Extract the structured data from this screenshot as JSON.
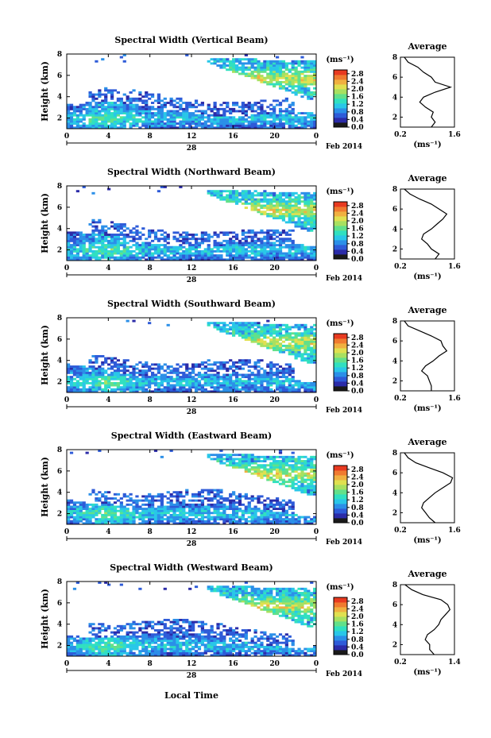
{
  "figure": {
    "bottom_label": "Local Time",
    "date_label": "Feb 2014",
    "day_label": "28",
    "colormap": [
      "#1a1a1a",
      "#2b2ba8",
      "#2e5bd8",
      "#2b8fe8",
      "#29c7e8",
      "#30e0c0",
      "#62e08a",
      "#a8e060",
      "#e0e050",
      "#f0b040",
      "#f07a30",
      "#e83a20"
    ]
  },
  "chart_data": [
    {
      "type": "heatmap",
      "title": "Spectral Width (Vertical Beam)",
      "ylabel": "Height (km)",
      "x_ticks": [
        "0",
        "4",
        "8",
        "12",
        "16",
        "20",
        "0"
      ],
      "y_ticks": [
        "2",
        "4",
        "6",
        "8"
      ],
      "xlim": [
        0,
        24
      ],
      "ylim": [
        1,
        8
      ],
      "colorbar": {
        "unit": "(ms⁻¹)",
        "ticks": [
          "0.0",
          "0.4",
          "0.8",
          "1.2",
          "1.6",
          "2.0",
          "2.4",
          "2.8"
        ],
        "range": [
          0.0,
          3.0
        ]
      },
      "average": {
        "title": "Average",
        "xlabel": "(ms⁻¹)",
        "x_ticks": [
          "0.2",
          "1.6"
        ],
        "xlim": [
          0.2,
          1.6
        ],
        "y_ticks": [
          "2",
          "4",
          "6",
          "8"
        ],
        "height": [
          1.0,
          1.5,
          2.0,
          2.5,
          3.0,
          3.5,
          4.0,
          4.5,
          5.0,
          5.5,
          6.0,
          6.5,
          7.0,
          7.5,
          8.0
        ],
        "value": [
          1.0,
          1.1,
          1.0,
          1.05,
          0.85,
          0.7,
          0.8,
          1.1,
          1.5,
          1.1,
          1.0,
          0.8,
          0.65,
          0.4,
          0.3
        ]
      }
    },
    {
      "type": "heatmap",
      "title": "Spectral Width (Northward Beam)",
      "ylabel": "Height (km)",
      "x_ticks": [
        "0",
        "4",
        "8",
        "12",
        "16",
        "20",
        "0"
      ],
      "y_ticks": [
        "2",
        "4",
        "6",
        "8"
      ],
      "xlim": [
        0,
        24
      ],
      "ylim": [
        1,
        8
      ],
      "colorbar": {
        "unit": "(ms⁻¹)",
        "ticks": [
          "0.0",
          "0.4",
          "0.8",
          "1.2",
          "1.6",
          "2.0",
          "2.4",
          "2.8"
        ],
        "range": [
          0.0,
          3.0
        ]
      },
      "average": {
        "title": "Average",
        "xlabel": "(ms⁻¹)",
        "x_ticks": [
          "0.2",
          "1.6"
        ],
        "xlim": [
          0.2,
          1.6
        ],
        "y_ticks": [
          "2",
          "4",
          "6",
          "8"
        ],
        "height": [
          1.0,
          1.5,
          2.0,
          2.5,
          3.0,
          3.5,
          4.0,
          4.5,
          5.0,
          5.5,
          6.0,
          6.5,
          7.0,
          7.5,
          8.0
        ],
        "value": [
          1.1,
          1.2,
          1.0,
          0.9,
          0.75,
          0.8,
          1.0,
          1.15,
          1.3,
          1.4,
          1.2,
          1.0,
          0.7,
          0.45,
          0.3
        ]
      }
    },
    {
      "type": "heatmap",
      "title": "Spectral Width (Southward Beam)",
      "ylabel": "Height (km)",
      "x_ticks": [
        "0",
        "4",
        "8",
        "12",
        "16",
        "20",
        "0"
      ],
      "y_ticks": [
        "2",
        "4",
        "6",
        "8"
      ],
      "xlim": [
        0,
        24
      ],
      "ylim": [
        1,
        8
      ],
      "colorbar": {
        "unit": "(ms⁻¹)",
        "ticks": [
          "0.0",
          "0.4",
          "0.8",
          "1.2",
          "1.6",
          "2.0",
          "2.4",
          "2.8"
        ],
        "range": [
          0.0,
          3.0
        ]
      },
      "average": {
        "title": "Average",
        "xlabel": "(ms⁻¹)",
        "x_ticks": [
          "0.2",
          "1.6"
        ],
        "xlim": [
          0.2,
          1.6
        ],
        "y_ticks": [
          "2",
          "4",
          "6",
          "8"
        ],
        "height": [
          1.0,
          1.5,
          2.0,
          2.5,
          3.0,
          3.5,
          4.0,
          4.5,
          5.0,
          5.5,
          6.0,
          6.5,
          7.0,
          7.5,
          8.0
        ],
        "value": [
          1.0,
          1.0,
          0.95,
          0.9,
          0.75,
          0.85,
          1.05,
          1.2,
          1.4,
          1.3,
          1.25,
          1.0,
          0.7,
          0.4,
          0.3
        ]
      }
    },
    {
      "type": "heatmap",
      "title": "Spectral Width (Eastward Beam)",
      "ylabel": "Height (km)",
      "x_ticks": [
        "0",
        "4",
        "8",
        "12",
        "16",
        "20",
        "0"
      ],
      "y_ticks": [
        "2",
        "4",
        "6",
        "8"
      ],
      "xlim": [
        0,
        24
      ],
      "ylim": [
        1,
        8
      ],
      "colorbar": {
        "unit": "(ms⁻¹)",
        "ticks": [
          "0.0",
          "0.4",
          "0.8",
          "1.2",
          "1.6",
          "2.0",
          "2.4",
          "2.8"
        ],
        "range": [
          0.0,
          3.0
        ]
      },
      "average": {
        "title": "Average",
        "xlabel": "(ms⁻¹)",
        "x_ticks": [
          "0.2",
          "1.6"
        ],
        "xlim": [
          0.2,
          1.6
        ],
        "y_ticks": [
          "2",
          "4",
          "6",
          "8"
        ],
        "height": [
          1.0,
          1.5,
          2.0,
          2.5,
          3.0,
          3.5,
          4.0,
          4.5,
          5.0,
          5.5,
          6.0,
          6.5,
          7.0,
          7.5,
          8.0
        ],
        "value": [
          1.1,
          0.95,
          0.85,
          0.75,
          0.8,
          0.95,
          1.1,
          1.3,
          1.5,
          1.55,
          1.3,
          0.95,
          0.6,
          0.4,
          0.3
        ]
      }
    },
    {
      "type": "heatmap",
      "title": "Spectral Width (Westward Beam)",
      "ylabel": "Height (km)",
      "x_ticks": [
        "0",
        "4",
        "8",
        "12",
        "16",
        "20",
        "0"
      ],
      "y_ticks": [
        "2",
        "4",
        "6",
        "8"
      ],
      "xlim": [
        0,
        24
      ],
      "ylim": [
        1,
        8
      ],
      "colorbar": {
        "unit": "(ms⁻¹)",
        "ticks": [
          "0.0",
          "0.4",
          "0.8",
          "1.2",
          "1.6",
          "2.0",
          "2.4",
          "2.8"
        ],
        "range": [
          0.0,
          3.0
        ]
      },
      "average": {
        "title": "Average",
        "xlabel": "(ms⁻¹)",
        "x_ticks": [
          "0.2",
          "1.4"
        ],
        "xlim": [
          0.2,
          1.4
        ],
        "y_ticks": [
          "2",
          "4",
          "6",
          "8"
        ],
        "height": [
          1.0,
          1.5,
          2.0,
          2.5,
          3.0,
          3.5,
          4.0,
          4.5,
          5.0,
          5.5,
          6.0,
          6.5,
          7.0,
          7.5,
          8.0
        ],
        "value": [
          0.95,
          0.85,
          0.85,
          0.75,
          0.8,
          0.95,
          1.05,
          1.1,
          1.2,
          1.3,
          1.25,
          1.1,
          0.7,
          0.45,
          0.3
        ]
      }
    }
  ]
}
